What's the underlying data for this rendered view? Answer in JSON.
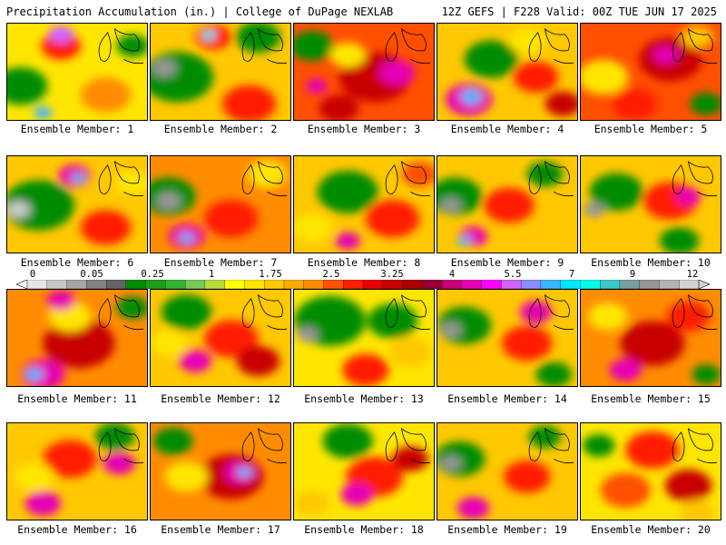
{
  "header": {
    "left": "Precipitation Accumulation (in.) | College of DuPage NEXLAB",
    "right": "12Z GEFS | F228 Valid: 00Z TUE JUN 17 2025"
  },
  "colorbar": {
    "ticks": [
      "0",
      "0.05",
      "0.25",
      "1",
      "1.75",
      "2.5",
      "3.25",
      "4",
      "5.5",
      "7",
      "9",
      "12"
    ],
    "colors": [
      "#e6e6e6",
      "#c8c8c8",
      "#a5a5a5",
      "#828282",
      "#646464",
      "#008c00",
      "#19a019",
      "#32b432",
      "#78c85a",
      "#b4dc3c",
      "#ffff00",
      "#ffe600",
      "#ffc800",
      "#ffaa00",
      "#ff8c00",
      "#ff5000",
      "#ff1e00",
      "#e60000",
      "#c80000",
      "#aa0000",
      "#960032",
      "#c80078",
      "#e600b4",
      "#ff00ff",
      "#d264ff",
      "#8c8cff",
      "#3cb4ff",
      "#00e6ff",
      "#00ffe6",
      "#3cc8c8",
      "#78a0a0",
      "#969696",
      "#b4b4b4",
      "#d2d2d2"
    ]
  },
  "members": [
    {
      "label": "Ensemble Member: 1"
    },
    {
      "label": "Ensemble Member: 2"
    },
    {
      "label": "Ensemble Member: 3"
    },
    {
      "label": "Ensemble Member: 4"
    },
    {
      "label": "Ensemble Member: 5"
    },
    {
      "label": "Ensemble Member: 6"
    },
    {
      "label": "Ensemble Member: 7"
    },
    {
      "label": "Ensemble Member: 8"
    },
    {
      "label": "Ensemble Member: 9"
    },
    {
      "label": "Ensemble Member: 10"
    },
    {
      "label": "Ensemble Member: 11"
    },
    {
      "label": "Ensemble Member: 12"
    },
    {
      "label": "Ensemble Member: 13"
    },
    {
      "label": "Ensemble Member: 14"
    },
    {
      "label": "Ensemble Member: 15"
    },
    {
      "label": "Ensemble Member: 16"
    },
    {
      "label": "Ensemble Member: 17"
    },
    {
      "label": "Ensemble Member: 18"
    },
    {
      "label": "Ensemble Member: 19"
    },
    {
      "label": "Ensemble Member: 20"
    }
  ]
}
